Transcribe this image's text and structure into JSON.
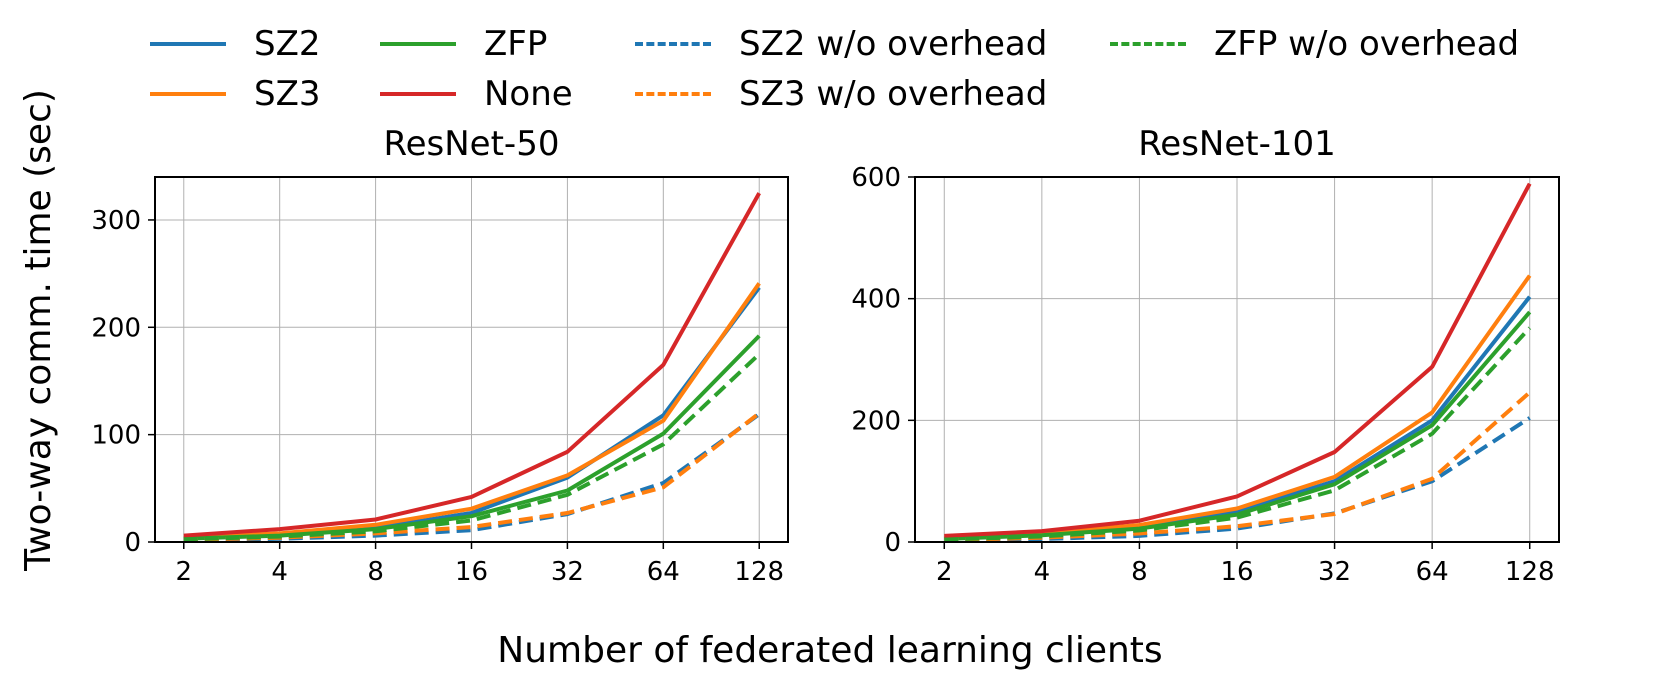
{
  "figure": {
    "ylabel": "Two-way comm. time (sec)",
    "xlabel": "Number of federated learning clients"
  },
  "legend": [
    {
      "name": "SZ2",
      "color": "#1f77b4",
      "style": "solid"
    },
    {
      "name": "SZ3",
      "color": "#ff7f0e",
      "style": "solid"
    },
    {
      "name": "ZFP",
      "color": "#2ca02c",
      "style": "solid"
    },
    {
      "name": "None",
      "color": "#d62728",
      "style": "solid"
    },
    {
      "name": "SZ2 w/o overhead",
      "color": "#1f77b4",
      "style": "dashed"
    },
    {
      "name": "SZ3 w/o overhead",
      "color": "#ff7f0e",
      "style": "dashed"
    },
    {
      "name": "ZFP w/o overhead",
      "color": "#2ca02c",
      "style": "dashed"
    }
  ],
  "chart_data": [
    {
      "type": "line",
      "title": "ResNet-50",
      "x": [
        2,
        4,
        8,
        16,
        32,
        64,
        128
      ],
      "xscale": "log2",
      "ylim": [
        0,
        340
      ],
      "yticks": [
        0,
        100,
        200,
        300
      ],
      "grid": true,
      "series": [
        {
          "name": "SZ2",
          "color": "#1f77b4",
          "style": "solid",
          "values": [
            3.5,
            7,
            13,
            27,
            60,
            118,
            237
          ]
        },
        {
          "name": "SZ3",
          "color": "#ff7f0e",
          "style": "solid",
          "values": [
            4,
            8,
            16,
            31,
            62,
            113,
            241
          ]
        },
        {
          "name": "ZFP",
          "color": "#2ca02c",
          "style": "solid",
          "values": [
            3,
            6,
            12,
            24,
            48,
            101,
            192
          ]
        },
        {
          "name": "None",
          "color": "#d62728",
          "style": "solid",
          "values": [
            6,
            12,
            21,
            42,
            84,
            165,
            325
          ]
        },
        {
          "name": "SZ2 w/o overhead",
          "color": "#1f77b4",
          "style": "dashed",
          "values": [
            1.5,
            3,
            6,
            11,
            26,
            55,
            119
          ]
        },
        {
          "name": "SZ3 w/o overhead",
          "color": "#ff7f0e",
          "style": "dashed",
          "values": [
            2,
            4,
            8,
            14,
            27,
            51,
            120
          ]
        },
        {
          "name": "ZFP w/o overhead",
          "color": "#2ca02c",
          "style": "dashed",
          "values": [
            2.5,
            5,
            10,
            20,
            44,
            91,
            175
          ]
        }
      ]
    },
    {
      "type": "line",
      "title": "ResNet-101",
      "x": [
        2,
        4,
        8,
        16,
        32,
        64,
        128
      ],
      "xscale": "log2",
      "ylim": [
        0,
        600
      ],
      "yticks": [
        0,
        200,
        400,
        600
      ],
      "grid": true,
      "series": [
        {
          "name": "SZ2",
          "color": "#1f77b4",
          "style": "solid",
          "values": [
            6,
            12,
            24,
            50,
            100,
            200,
            403
          ]
        },
        {
          "name": "SZ3",
          "color": "#ff7f0e",
          "style": "solid",
          "values": [
            7,
            14,
            28,
            55,
            107,
            213,
            438
          ]
        },
        {
          "name": "ZFP",
          "color": "#2ca02c",
          "style": "solid",
          "values": [
            5,
            11,
            22,
            45,
            95,
            192,
            378
          ]
        },
        {
          "name": "None",
          "color": "#d62728",
          "style": "solid",
          "values": [
            10,
            18,
            35,
            75,
            148,
            288,
            589
          ]
        },
        {
          "name": "SZ2 w/o overhead",
          "color": "#1f77b4",
          "style": "dashed",
          "values": [
            2.5,
            5,
            10,
            22,
            47,
            100,
            204
          ]
        },
        {
          "name": "SZ3 w/o overhead",
          "color": "#ff7f0e",
          "style": "dashed",
          "values": [
            3,
            7,
            14,
            26,
            46,
            104,
            246
          ]
        },
        {
          "name": "ZFP w/o overhead",
          "color": "#2ca02c",
          "style": "dashed",
          "values": [
            4,
            9,
            19,
            40,
            85,
            178,
            352
          ]
        }
      ]
    }
  ]
}
